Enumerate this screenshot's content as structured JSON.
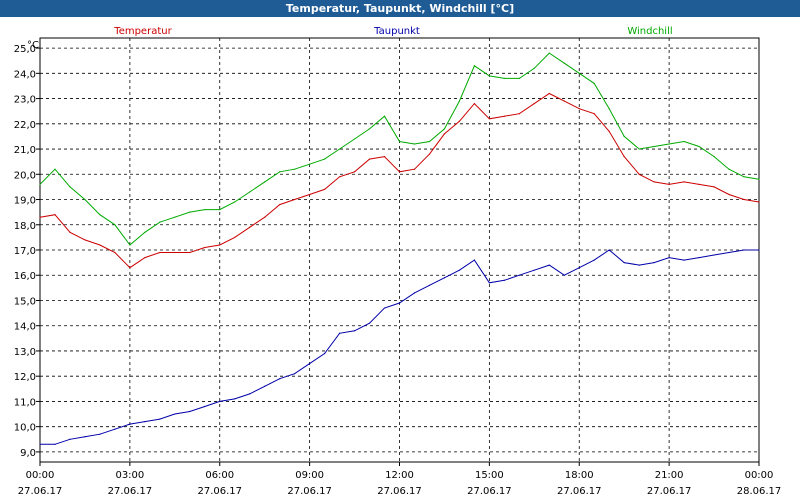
{
  "window": {
    "title": "Temperatur, Taupunkt, Windchill [°C]"
  },
  "chart_data": {
    "type": "line",
    "unit": "°C",
    "grid": true,
    "ylim": [
      8.6,
      25.4
    ],
    "y_ticks": [
      "9,0",
      "10,0",
      "11,0",
      "12,0",
      "13,0",
      "14,0",
      "15,0",
      "16,0",
      "17,0",
      "18,0",
      "19,0",
      "20,0",
      "21,0",
      "22,0",
      "23,0",
      "24,0",
      "25,0"
    ],
    "x_ticks": [
      {
        "time": "00:00",
        "date": "27.06.17"
      },
      {
        "time": "03:00",
        "date": "27.06.17"
      },
      {
        "time": "06:00",
        "date": "27.06.17"
      },
      {
        "time": "09:00",
        "date": "27.06.17"
      },
      {
        "time": "12:00",
        "date": "27.06.17"
      },
      {
        "time": "15:00",
        "date": "27.06.17"
      },
      {
        "time": "18:00",
        "date": "27.06.17"
      },
      {
        "time": "21:00",
        "date": "27.06.17"
      },
      {
        "time": "00:00",
        "date": "28.06.17"
      }
    ],
    "x_hours": [
      0,
      0.5,
      1,
      1.5,
      2,
      2.5,
      3,
      3.5,
      4,
      4.5,
      5,
      5.5,
      6,
      6.5,
      7,
      7.5,
      8,
      8.5,
      9,
      9.5,
      10,
      10.5,
      11,
      11.5,
      12,
      12.5,
      13,
      13.5,
      14,
      14.5,
      15,
      15.5,
      16,
      16.5,
      17,
      17.5,
      18,
      18.5,
      19,
      19.5,
      20,
      20.5,
      21,
      21.5,
      22,
      22.5,
      23,
      23.5,
      24
    ],
    "series": [
      {
        "name": "Temperatur",
        "color": "#cc0000",
        "values": [
          18.3,
          18.4,
          17.7,
          17.4,
          17.2,
          16.9,
          16.3,
          16.7,
          16.9,
          16.9,
          16.9,
          17.1,
          17.2,
          17.5,
          17.9,
          18.3,
          18.8,
          19.0,
          19.2,
          19.4,
          19.9,
          20.1,
          20.6,
          20.7,
          20.1,
          20.2,
          20.8,
          21.6,
          22.1,
          22.8,
          22.2,
          22.3,
          22.4,
          22.8,
          23.2,
          22.9,
          22.6,
          22.4,
          21.7,
          20.7,
          20.0,
          19.7,
          19.6,
          19.7,
          19.6,
          19.5,
          19.2,
          19.0,
          18.9
        ]
      },
      {
        "name": "Taupunkt",
        "color": "#0000aa",
        "values": [
          9.3,
          9.3,
          9.5,
          9.6,
          9.7,
          9.9,
          10.1,
          10.2,
          10.3,
          10.5,
          10.6,
          10.8,
          11.0,
          11.1,
          11.3,
          11.6,
          11.9,
          12.1,
          12.5,
          12.9,
          13.7,
          13.8,
          14.1,
          14.7,
          14.9,
          15.3,
          15.6,
          15.9,
          16.2,
          16.6,
          15.7,
          15.8,
          16.0,
          16.2,
          16.4,
          16.0,
          16.3,
          16.6,
          17.0,
          16.5,
          16.4,
          16.5,
          16.7,
          16.6,
          16.7,
          16.8,
          16.9,
          17.0,
          17.0
        ]
      },
      {
        "name": "Windchill",
        "color": "#00aa00",
        "values": [
          19.6,
          20.2,
          19.5,
          19.0,
          18.4,
          18.0,
          17.2,
          17.7,
          18.1,
          18.3,
          18.5,
          18.6,
          18.6,
          18.9,
          19.3,
          19.7,
          20.1,
          20.2,
          20.4,
          20.6,
          21.0,
          21.4,
          21.8,
          22.3,
          21.3,
          21.2,
          21.3,
          21.8,
          22.9,
          24.3,
          23.9,
          23.8,
          23.8,
          24.2,
          24.8,
          24.4,
          24.0,
          23.6,
          22.6,
          21.5,
          21.0,
          21.1,
          21.2,
          21.3,
          21.1,
          20.7,
          20.2,
          19.9,
          19.8
        ]
      }
    ]
  }
}
